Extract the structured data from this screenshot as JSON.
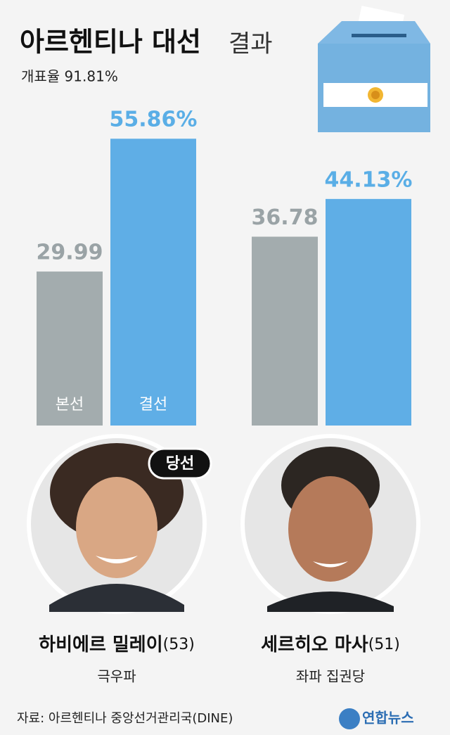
{
  "chart_data": {
    "type": "bar",
    "title": "아르헨티나 대선",
    "title_suffix": "결과",
    "subtitle": "개표율 91.81%",
    "categories": [
      "하비에르 밀레이",
      "세르히오 마사"
    ],
    "ages": [
      "(53)",
      "(51)"
    ],
    "parties": [
      "극우파",
      "좌파 집권당"
    ],
    "winner_badge": "당선",
    "series": [
      {
        "name": "본선",
        "color": "#a3acae",
        "values": [
          29.99,
          36.78
        ]
      },
      {
        "name": "결선",
        "color": "#5faee6",
        "values": [
          55.86,
          44.13
        ],
        "value_labels": [
          "55.86%",
          "44.13%"
        ]
      }
    ],
    "ylim": [
      0,
      60
    ],
    "source": "자료: 아르헨티나 중앙선거관리국(DINE)",
    "logo": "연합뉴스"
  }
}
